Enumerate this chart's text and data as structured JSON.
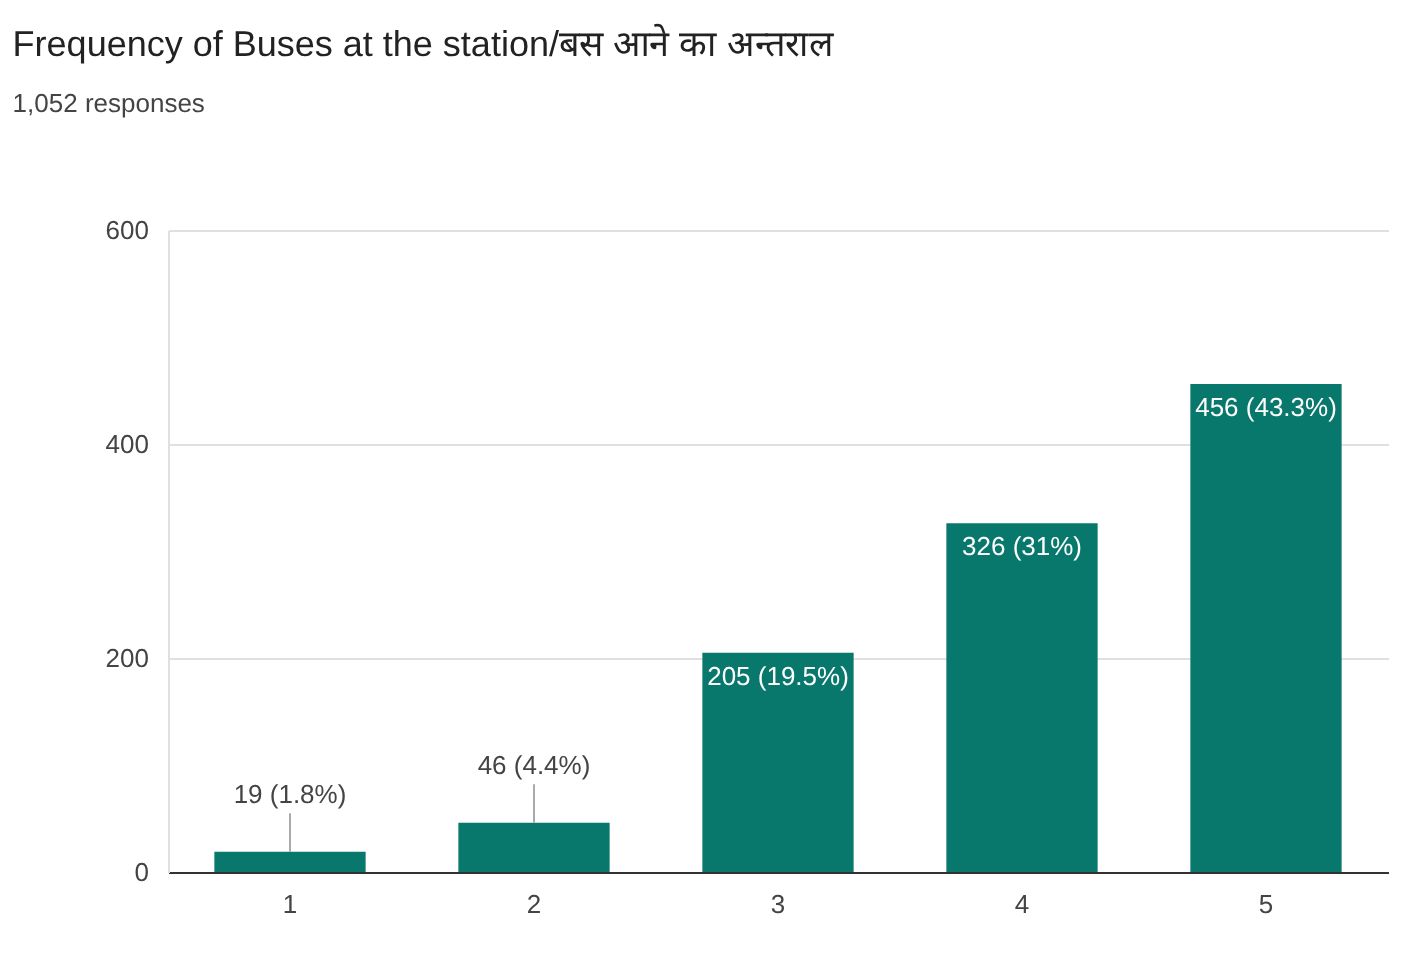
{
  "chart_data": {
    "type": "bar",
    "title": "Frequency of Buses at the station/बस आने का अन्तराल",
    "subtitle": "1,052 responses",
    "categories": [
      "1",
      "2",
      "3",
      "4",
      "5"
    ],
    "values": [
      19,
      46,
      205,
      326,
      456
    ],
    "value_labels": [
      "19 (1.8%)",
      "46 (4.4%)",
      "205 (19.5%)",
      "326 (31%)",
      "456 (43.3%)"
    ],
    "color": "#09786c",
    "ylim": [
      0,
      600
    ],
    "yticks": [
      0,
      200,
      400,
      600
    ],
    "grid": "y"
  }
}
